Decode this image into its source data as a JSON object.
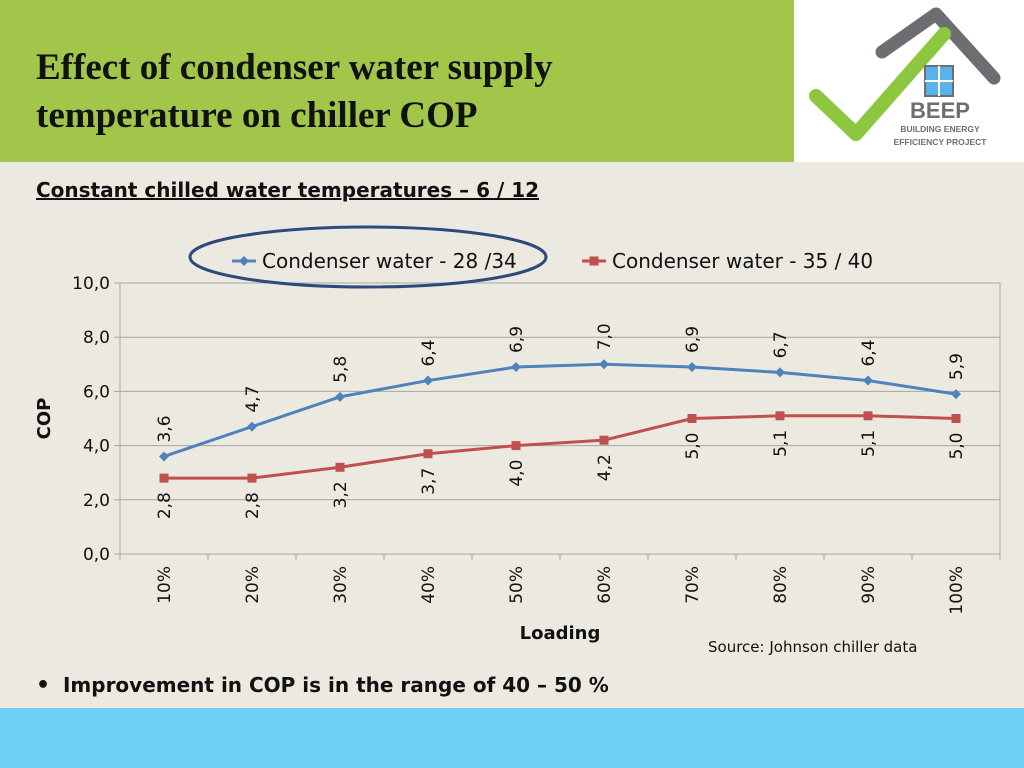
{
  "slide": {
    "title_line1": "Effect of condenser water supply",
    "title_line2": "temperature on chiller COP",
    "subtitle": "Constant chilled water temperatures – 6 / 12",
    "source": "Source: Johnson chiller data",
    "bullet": "Improvement in COP is in the range of 40 – 50 %"
  },
  "logo": {
    "name": "BEEP",
    "line1": "BUILDING ENERGY",
    "line2": "EFFICIENCY PROJECT",
    "check_color": "#8DC63F",
    "roof_color": "#6D6E71"
  },
  "colors": {
    "header_green": "#A2C64A",
    "background": "#ECE9E0",
    "footer_blue": "#6ECFF6",
    "highlight_ellipse": "#2E4A7D"
  },
  "chart_data": {
    "type": "line",
    "xlabel": "Loading",
    "ylabel": "COP",
    "categories": [
      "10%",
      "20%",
      "30%",
      "40%",
      "50%",
      "60%",
      "70%",
      "80%",
      "90%",
      "100%"
    ],
    "ylim": [
      0,
      10
    ],
    "yticks": [
      "0,0",
      "2,0",
      "4,0",
      "6,0",
      "8,0",
      "10,0"
    ],
    "ytick_values": [
      0,
      2,
      4,
      6,
      8,
      10
    ],
    "grid": true,
    "legend_position": "top",
    "series": [
      {
        "name": "Condenser water - 28 /34",
        "color": "#4F81BD",
        "marker": "diamond",
        "values": [
          3.6,
          4.7,
          5.8,
          6.4,
          6.9,
          7.0,
          6.9,
          6.7,
          6.4,
          5.9
        ],
        "labels": [
          "3,6",
          "4,7",
          "5,8",
          "6,4",
          "6,9",
          "7,0",
          "6,9",
          "6,7",
          "6,4",
          "5,9"
        ],
        "label_position": "above",
        "highlighted": true
      },
      {
        "name": "Condenser water - 35 / 40",
        "color": "#C0504D",
        "marker": "square",
        "values": [
          2.8,
          2.8,
          3.2,
          3.7,
          4.0,
          4.2,
          5.0,
          5.1,
          5.1,
          5.0
        ],
        "labels": [
          "2,8",
          "2,8",
          "3,2",
          "3,7",
          "4,0",
          "4,2",
          "5,0",
          "5,1",
          "5,1",
          "5,0"
        ],
        "label_position": "below",
        "highlighted": false
      }
    ]
  }
}
